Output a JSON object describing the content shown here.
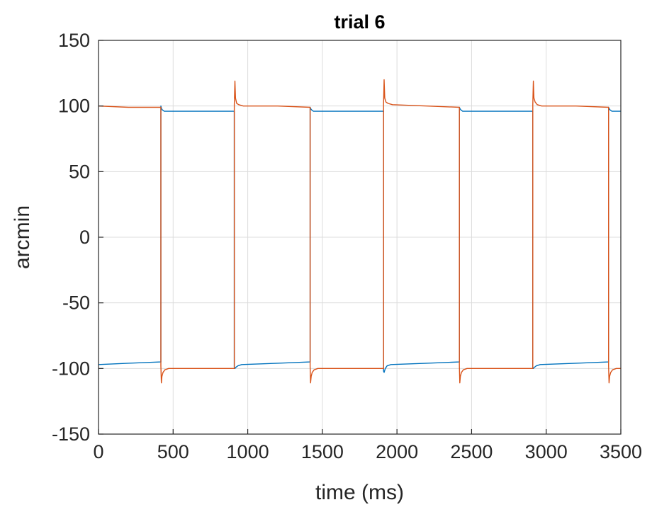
{
  "chart_data": {
    "type": "line",
    "title": "trial 6",
    "xlabel": "time (ms)",
    "ylabel": "arcmin",
    "xlim": [
      0,
      3500
    ],
    "ylim": [
      -150,
      150
    ],
    "xticks": [
      0,
      500,
      1000,
      1500,
      2000,
      2500,
      3000,
      3500
    ],
    "xtick_labels": [
      "0",
      "500",
      "1000",
      "1500",
      "2000",
      "2500",
      "3000",
      "3500"
    ],
    "yticks": [
      -150,
      -100,
      -50,
      0,
      50,
      100,
      150
    ],
    "ytick_labels": [
      "-150",
      "-100",
      "-50",
      "0",
      "50",
      "100",
      "150"
    ],
    "grid": true,
    "series": [
      {
        "color": "#0072BD",
        "x": [
          0,
          200,
          418,
          418,
          422,
          428,
          440,
          470,
          650,
          910,
          910,
          914,
          922,
          934,
          960,
          1200,
          1418,
          1418,
          1422,
          1428,
          1440,
          1470,
          1650,
          1910,
          1910,
          1914,
          1922,
          1934,
          1960,
          2200,
          2418,
          2418,
          2422,
          2428,
          2440,
          2470,
          2650,
          2910,
          2910,
          2914,
          2922,
          2934,
          2960,
          3200,
          3418,
          3418,
          3422,
          3428,
          3440,
          3470,
          3500
        ],
        "y": [
          -97,
          -96,
          -95,
          100,
          98,
          97,
          96,
          96,
          96,
          96,
          -99,
          -100,
          -99,
          -98,
          -97,
          -96,
          -95,
          99,
          98,
          97,
          96,
          96,
          96,
          96,
          -102,
          -103,
          -100,
          -98,
          -97,
          -96,
          -95,
          99,
          98,
          97,
          96,
          96,
          96,
          96,
          -99,
          -100,
          -99,
          -98,
          -97,
          -96,
          -95,
          99,
          98,
          97,
          96,
          96,
          96
        ]
      },
      {
        "color": "#D95319",
        "x": [
          0,
          200,
          418,
          418,
          421,
          425,
          432,
          445,
          470,
          650,
          910,
          910,
          914,
          918,
          926,
          940,
          970,
          1200,
          1418,
          1418,
          1421,
          1425,
          1432,
          1445,
          1470,
          1650,
          1910,
          1910,
          1914,
          1918,
          1926,
          1940,
          1970,
          2200,
          2418,
          2418,
          2421,
          2425,
          2432,
          2445,
          2470,
          2650,
          2910,
          2910,
          2914,
          2918,
          2926,
          2940,
          2970,
          3200,
          3418,
          3418,
          3421,
          3425,
          3432,
          3445,
          3470,
          3500
        ],
        "y": [
          100,
          99,
          99,
          -98,
          -111,
          -106,
          -103,
          -101,
          -100,
          -100,
          -100,
          101,
          119,
          106,
          102,
          101,
          100,
          100,
          99,
          -98,
          -111,
          -106,
          -103,
          -101,
          -100,
          -100,
          -100,
          101,
          120,
          106,
          103,
          102,
          101,
          100,
          99,
          -98,
          -111,
          -106,
          -103,
          -101,
          -100,
          -100,
          -100,
          101,
          119,
          106,
          103,
          101,
          100,
          100,
          99,
          -98,
          -111,
          -106,
          -103,
          -101,
          -100,
          -100
        ]
      }
    ]
  }
}
